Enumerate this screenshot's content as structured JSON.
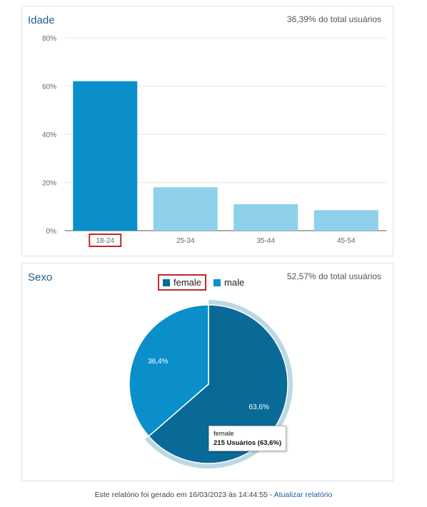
{
  "age": {
    "title": "Idade",
    "share": "36,39% do total usuários",
    "chart_data": {
      "type": "bar",
      "categories": [
        "18-24",
        "25-34",
        "35-44",
        "45-54"
      ],
      "values": [
        62.0,
        18.0,
        11.0,
        8.5
      ],
      "ylim": [
        0,
        80
      ],
      "yticks": [
        "0%",
        "20%",
        "40%",
        "60%",
        "80%"
      ],
      "highlighted_category": "18-24",
      "colors": {
        "highlight": "#0a8fcb",
        "default": "#8fd0ea"
      },
      "grid": true
    }
  },
  "sex": {
    "title": "Sexo",
    "share": "52,57% do total usuários",
    "chart_data": {
      "type": "pie",
      "labels": [
        "female",
        "male"
      ],
      "values": [
        63.6,
        36.4
      ],
      "value_labels": [
        "63,6%",
        "36,4%"
      ],
      "colors": {
        "female": "#0a6a97",
        "male": "#0a8fcb"
      },
      "legend_placement": "top-center",
      "highlighted": "female"
    },
    "tooltip": {
      "label": "female",
      "detail": "215 Usuários (63,6%)"
    }
  },
  "footer": {
    "text": "Este relatório foi gerado em 16/03/2023 às 14:44:55 - ",
    "link": "Atualizar relatório"
  }
}
